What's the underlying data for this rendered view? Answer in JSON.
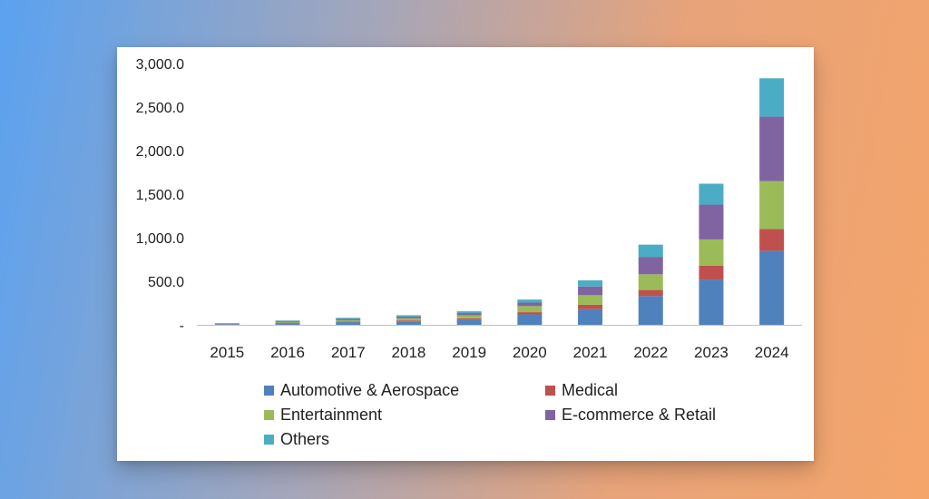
{
  "chart_data": {
    "type": "bar",
    "stacked": true,
    "categories": [
      "2015",
      "2016",
      "2017",
      "2018",
      "2019",
      "2020",
      "2021",
      "2022",
      "2023",
      "2024"
    ],
    "y_tick_values": [
      0,
      500,
      1000,
      1500,
      2000,
      2500,
      3000
    ],
    "y_tick_labels": [
      "-",
      "500.0",
      "1,000.0",
      "1,500.0",
      "2,000.0",
      "2,500.0",
      "3,000.0"
    ],
    "ylim": [
      0,
      3000
    ],
    "title": "",
    "xlabel": "",
    "ylabel": "",
    "legend_position": "bottom",
    "series": [
      {
        "name": "Automotive & Aerospace",
        "color": "#4f81bd",
        "values": [
          8,
          20,
          30,
          40,
          60,
          120,
          180,
          330,
          520,
          850
        ]
      },
      {
        "name": "Medical",
        "color": "#c0504d",
        "values": [
          2,
          5,
          8,
          10,
          15,
          25,
          50,
          70,
          160,
          250
        ]
      },
      {
        "name": "Entertainment",
        "color": "#9bbb59",
        "values": [
          3,
          8,
          15,
          25,
          35,
          70,
          110,
          180,
          300,
          550
        ]
      },
      {
        "name": "E-commerce & Retail",
        "color": "#8064a2",
        "values": [
          3,
          10,
          15,
          20,
          25,
          40,
          100,
          200,
          400,
          740
        ]
      },
      {
        "name": "Others",
        "color": "#4bacc6",
        "values": [
          4,
          7,
          12,
          15,
          20,
          35,
          70,
          140,
          240,
          440
        ]
      }
    ]
  }
}
